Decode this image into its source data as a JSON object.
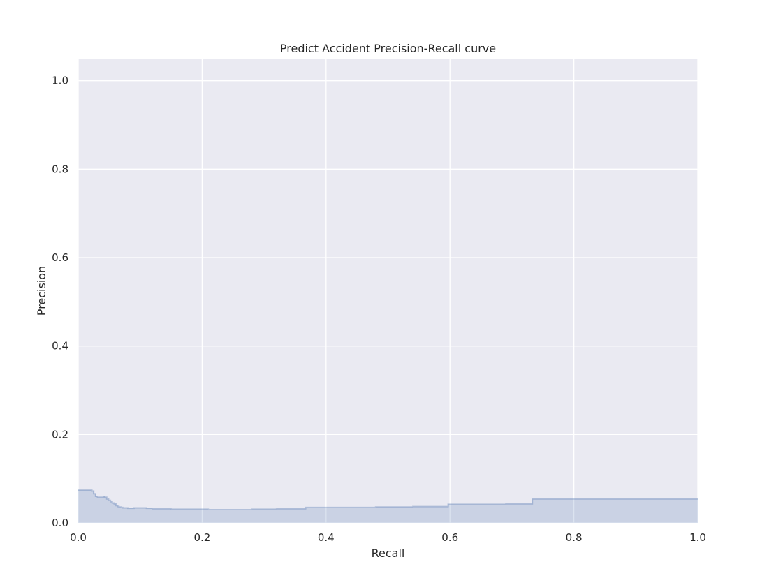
{
  "chart_data": {
    "type": "area",
    "title": "Predict Accident Precision-Recall curve",
    "xlabel": "Recall",
    "ylabel": "Precision",
    "xlim": [
      0.0,
      1.0
    ],
    "ylim": [
      0.0,
      1.05
    ],
    "x_ticks": [
      "0.0",
      "0.2",
      "0.4",
      "0.6",
      "0.8",
      "1.0"
    ],
    "y_ticks": [
      "0.0",
      "0.2",
      "0.4",
      "0.6",
      "0.8",
      "1.0"
    ],
    "grid": true,
    "step": "post",
    "colors": {
      "background": "#eaeaf2",
      "line": "#4c72b0",
      "fill": "#4c72b0"
    },
    "series": [
      {
        "x": [
          0.0,
          0.022,
          0.025,
          0.028,
          0.031,
          0.036,
          0.041,
          0.043,
          0.046,
          0.049,
          0.052,
          0.055,
          0.058,
          0.061,
          0.064,
          0.066,
          0.069,
          0.072,
          0.075,
          0.08,
          0.085,
          0.09,
          0.11,
          0.12,
          0.15,
          0.2,
          0.21,
          0.25,
          0.28,
          0.32,
          0.367,
          0.42,
          0.48,
          0.52,
          0.54,
          0.597,
          0.65,
          0.69,
          0.733,
          0.8,
          0.9,
          1.0
        ],
        "y": [
          0.074,
          0.072,
          0.066,
          0.06,
          0.058,
          0.058,
          0.06,
          0.058,
          0.054,
          0.051,
          0.048,
          0.045,
          0.043,
          0.039,
          0.037,
          0.036,
          0.035,
          0.034,
          0.034,
          0.033,
          0.033,
          0.034,
          0.033,
          0.032,
          0.031,
          0.031,
          0.03,
          0.03,
          0.031,
          0.032,
          0.035,
          0.035,
          0.036,
          0.036,
          0.037,
          0.042,
          0.042,
          0.043,
          0.054,
          0.054,
          0.054,
          0.054
        ]
      }
    ]
  }
}
